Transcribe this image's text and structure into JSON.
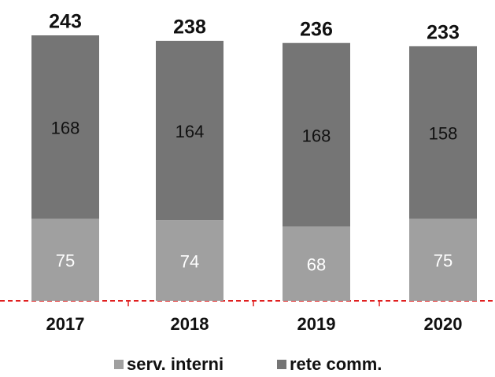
{
  "chart_data": {
    "type": "stacked_bar",
    "categories": [
      "2017",
      "2018",
      "2019",
      "2020"
    ],
    "series": [
      {
        "name": "serv. interni",
        "color": "#a0a0a0",
        "values": [
          75,
          74,
          68,
          75
        ]
      },
      {
        "name": "rete comm.",
        "color": "#757575",
        "values": [
          168,
          164,
          168,
          158
        ]
      }
    ],
    "totals": [
      243,
      238,
      236,
      233
    ]
  }
}
